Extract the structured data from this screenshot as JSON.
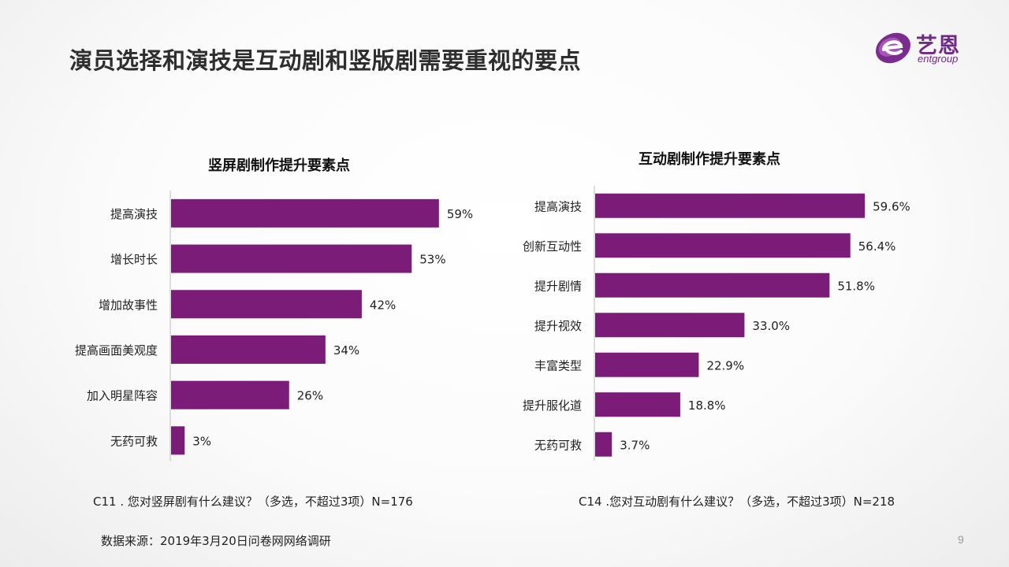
{
  "page": {
    "title": "演员选择和演技是互动剧和竖版剧需要重视的要点",
    "source": "数据来源：2019年3月20日问卷网网络调研",
    "page_number": "9"
  },
  "logo": {
    "name_cn": "艺恩",
    "name_en": "entgroup",
    "color": "#6f2a86"
  },
  "bar_color": "#7a1c78",
  "chart_data": [
    {
      "type": "bar",
      "orientation": "horizontal",
      "title": "竖屏剧制作提升要素点",
      "categories": [
        "提高演技",
        "增长时长",
        "增加故事性",
        "提高画面美观度",
        "加入明星阵容",
        "无药可救"
      ],
      "values": [
        59,
        53,
        42,
        34,
        26,
        3
      ],
      "labels": [
        "59%",
        "53%",
        "42%",
        "34%",
        "26%",
        "3%"
      ],
      "unit": "%",
      "note": "C11 . 您对竖屏剧有什么建议？（多选，不超过3项）N=176"
    },
    {
      "type": "bar",
      "orientation": "horizontal",
      "title": "互动剧制作提升要素点",
      "categories": [
        "提高演技",
        "创新互动性",
        "提升剧情",
        "提升视效",
        "丰富类型",
        "提升服化道",
        "无药可救"
      ],
      "values": [
        59.6,
        56.4,
        51.8,
        33.0,
        22.9,
        18.8,
        3.7
      ],
      "labels": [
        "59.6%",
        "56.4%",
        "51.8%",
        "33.0%",
        "22.9%",
        "18.8%",
        "3.7%"
      ],
      "unit": "%",
      "note": "C14 .您对互动剧有什么建议？（多选，不超过3项）N=218"
    }
  ]
}
